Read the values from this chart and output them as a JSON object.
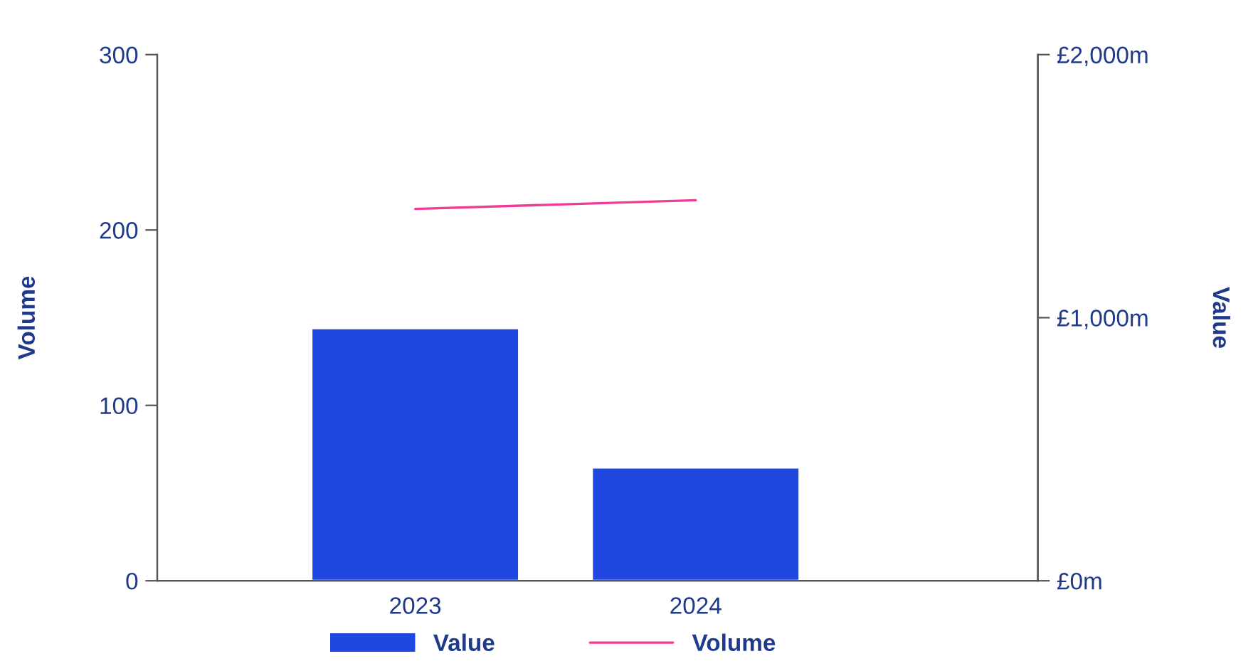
{
  "chart_data": {
    "type": "bar",
    "ylabel": "Volume",
    "y2label": "Value",
    "categories": [
      "2023",
      "2024"
    ],
    "series": [
      {
        "name": "Value",
        "axis": "y2",
        "color": "#2048e0",
        "values": [
          960,
          430
        ]
      },
      {
        "name": "Volume",
        "type": "line",
        "axis": "y",
        "color": "#ee3c96",
        "values": [
          212,
          217
        ]
      }
    ],
    "ylim": [
      0,
      300
    ],
    "yticks": [
      0,
      100,
      200,
      300
    ],
    "y2lim": [
      0,
      2000
    ],
    "y2ticks": [
      {
        "value": 0,
        "label": "£0m"
      },
      {
        "value": 1000,
        "label": "£1,000m"
      },
      {
        "value": 2000,
        "label": "£2,000m"
      }
    ],
    "grid": false,
    "legend": "bottom",
    "marker": "none",
    "line_style": "solid"
  }
}
